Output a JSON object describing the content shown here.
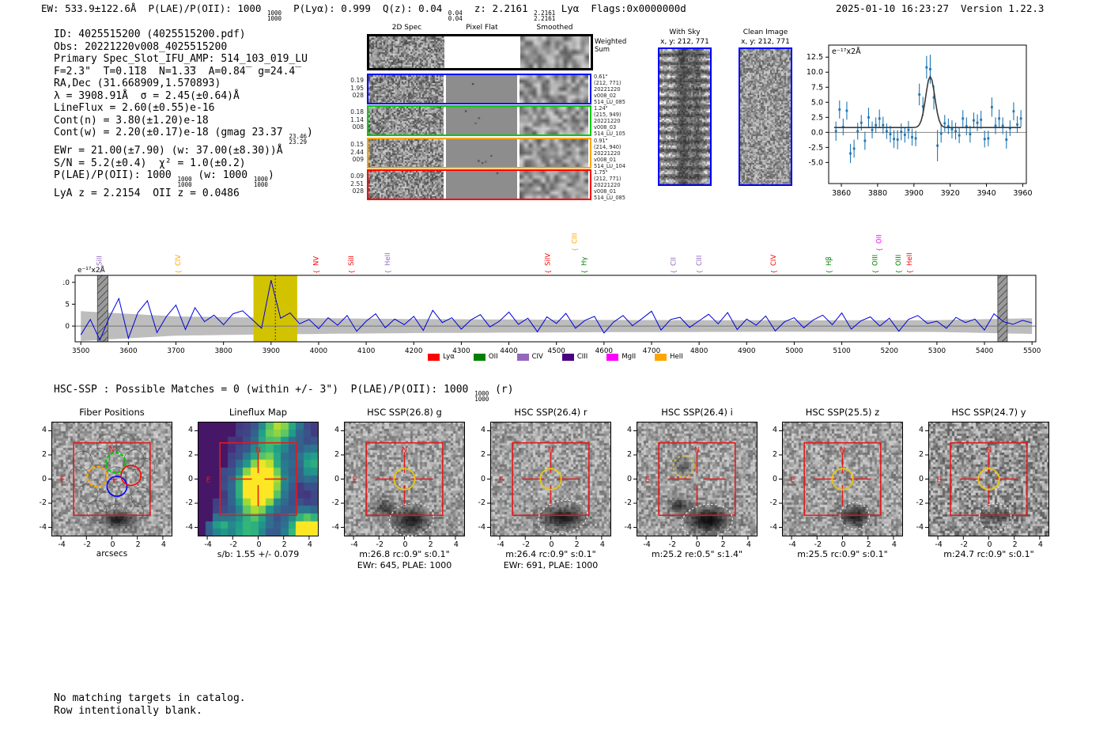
{
  "header": {
    "tokens": [
      "EW: 533.9±122.6Å  P(LAE)/P(OII): 1000 ",
      {
        "hi": "1000",
        "lo": "1000"
      },
      "  P(Lyα): 0.999  Q(z): 0.04 ",
      {
        "hi": "0.04",
        "lo": "0.04"
      },
      "  z: 2.2161 ",
      {
        "hi": "2.2161",
        "lo": "2.2161"
      },
      " Lyα  Flags:0x0000000d"
    ],
    "datetime_version": "2025-01-10 16:23:27  Version 1.22.3",
    "datetime": "2025-01-10 16:23:27",
    "version": "Version 1.22.3"
  },
  "info": {
    "lines": [
      [
        "ID: 4025515200 (4025515200.pdf)"
      ],
      [
        "Obs: 20221220v008_4025515200"
      ],
      [
        "Primary Spec_Slot_IFU_AMP: 514_103_019_LU"
      ],
      [
        "F=2.3\"  T=0.1̅18  N=1.3̅3  A=0.84̅  g=24.4̅"
      ],
      [
        "RA,Dec (31.668909,1.570893)"
      ],
      [
        "λ = 3908.91Å  σ = 2.45(±0.64)Å"
      ],
      [
        "LineFlux = 2.60(±0.55)e-16"
      ],
      [
        "Cont(n) = 3.80(±1.20)e-18"
      ],
      [
        "Cont(w) = 2.20(±0.17)e-18 (gmag 23.37 ",
        {
          "hi": "23.46",
          "lo": "23.29"
        },
        ")"
      ],
      [
        "EWr = 21.00(±7.90) (w: 37.00(±8.30))Å"
      ],
      [
        "S/N = 5.2(±0.4)  χ² = 1.0(±0.2)"
      ],
      [
        "P(LAE)/P(OII): 1000 ",
        {
          "hi": "1000",
          "lo": "1000"
        },
        " (w: 1000 ",
        {
          "hi": "1000",
          "lo": "1000"
        },
        ")"
      ],
      [
        "LyA z = 2.2154  OII z = 0.0486"
      ]
    ]
  },
  "spec2d": {
    "col_titles": [
      "2D Spec",
      "Pixel Flat",
      "Smoothed"
    ],
    "weighted_label": [
      "Weighted",
      "Sum"
    ],
    "rows": [
      {
        "border": "#000000",
        "left": [],
        "right": []
      },
      {
        "border": "#0000ff",
        "left": [
          "0.19",
          "1.95",
          "028"
        ],
        "right": [
          "0.61\"",
          "(212, 771)",
          "20221220",
          "v008_02",
          "514_LU_085"
        ]
      },
      {
        "border": "#00cc00",
        "left": [
          "0.18",
          "1.14",
          "008"
        ],
        "right": [
          "1.24\"",
          "(215, 949)",
          "20221220",
          "v008_03",
          "514_LU_105"
        ]
      },
      {
        "border": "#ffa500",
        "left": [
          "0.15",
          "2.44",
          "009"
        ],
        "right": [
          "0.91\"",
          "(214, 940)",
          "20221220",
          "v008_01",
          "514_LU_104"
        ]
      },
      {
        "border": "#ff0000",
        "left": [
          "0.09",
          "2.51",
          "028"
        ],
        "right": [
          "1.75\"",
          "(212, 771)",
          "20221220",
          "v008_01",
          "514_LU_085"
        ]
      }
    ]
  },
  "sky_panels": [
    {
      "title": "With Sky",
      "subtitle": "x, y: 212, 771",
      "border": "#0000ff"
    },
    {
      "title": "Clean Image",
      "subtitle": "x, y: 212, 771",
      "border": "#0000ff"
    }
  ],
  "chart_data": [
    {
      "type": "scatter",
      "title": "emission line fit",
      "unit_label": "e⁻¹⁷x2Å",
      "x_start": 3857,
      "x_step": 2,
      "values": [
        0.2,
        3.8,
        0.9,
        3.6,
        -3.5,
        -2.7,
        0.2,
        1.6,
        -1.4,
        2.5,
        0.4,
        1.2,
        2.3,
        1.2,
        0.2,
        -0.3,
        -1.1,
        -1.2,
        0.1,
        -0.4,
        0.4,
        -0.8,
        -1.0,
        6.3,
        4.3,
        10.8,
        10.5,
        5.8,
        -2.2,
        -0.2,
        1.5,
        1.0,
        0.5,
        0.2,
        -0.5,
        2.3,
        1.0,
        -0.3,
        2.0,
        1.6,
        2.1,
        -1.1,
        -1.0,
        4.2,
        1.1,
        2.3,
        1.1,
        -1.2,
        0.7,
        3.5,
        1.3,
        2.3
      ],
      "errors": [
        1.6,
        1.5,
        1.4,
        1.5,
        1.6,
        1.5,
        1.4,
        1.3,
        1.5,
        1.6,
        1.4,
        1.3,
        1.5,
        1.4,
        1.3,
        1.4,
        1.5,
        1.6,
        1.4,
        1.3,
        1.5,
        1.4,
        1.3,
        1.8,
        1.6,
        1.9,
        2.4,
        2.0,
        2.6,
        1.5,
        1.4,
        1.3,
        1.5,
        1.4,
        1.3,
        1.4,
        1.5,
        1.4,
        1.3,
        1.4,
        1.5,
        1.4,
        1.3,
        1.6,
        1.4,
        1.5,
        1.4,
        1.5,
        1.3,
        1.5,
        1.4,
        1.4
      ],
      "fit": {
        "baseline": 0.8,
        "amplitude": 8.5,
        "center": 3909,
        "sigma": 2.5
      },
      "xticks": [
        3860,
        3880,
        3900,
        3920,
        3940,
        3960
      ],
      "yticks": [
        -5.0,
        -2.5,
        0.0,
        2.5,
        5.0,
        7.5,
        10.0,
        12.5
      ],
      "xlim": [
        3853,
        3962
      ],
      "ylim": [
        -8.5,
        14.5
      ],
      "point_color": "#1f77b4",
      "fit_color": "#3a3a3a"
    },
    {
      "type": "line",
      "title": "full spectrum",
      "unit_label": "e⁻¹⁷x2Å",
      "x_start": 3500,
      "x_step": 20,
      "values": [
        -2.0,
        1.5,
        -3.2,
        2.0,
        6.3,
        -2.8,
        3.1,
        5.8,
        -1.5,
        2.2,
        4.8,
        -0.8,
        4.2,
        1.0,
        2.5,
        0.3,
        2.8,
        3.5,
        1.5,
        -0.5,
        10.5,
        1.8,
        3.0,
        0.5,
        1.5,
        -0.6,
        1.9,
        0.2,
        2.4,
        -1.2,
        1.1,
        2.8,
        -0.4,
        1.6,
        0.3,
        2.2,
        -1.0,
        3.6,
        0.8,
        1.9,
        -0.7,
        1.4,
        2.6,
        -0.2,
        1.1,
        3.2,
        0.4,
        1.8,
        -1.3,
        2.1,
        0.6,
        2.9,
        -0.5,
        1.3,
        2.2,
        -1.6,
        0.9,
        2.4,
        0.1,
        1.7,
        3.4,
        -0.9,
        1.5,
        2.0,
        -0.3,
        1.2,
        2.7,
        0.5,
        3.1,
        -0.8,
        1.6,
        0.2,
        2.3,
        -1.1,
        1.0,
        1.9,
        -0.4,
        1.4,
        2.5,
        0.3,
        3.0,
        -0.7,
        1.2,
        2.1,
        0.0,
        1.8,
        -1.2,
        1.5,
        2.4,
        0.6,
        1.1,
        -0.5,
        2.0,
        0.8,
        1.6,
        -0.9,
        2.8,
        1.0,
        0.4,
        1.3,
        0.7
      ],
      "envelope_x": [
        3500,
        3700,
        3900,
        4200,
        4600,
        5000,
        5300,
        5500
      ],
      "envelope": [
        3.4,
        2.2,
        1.9,
        1.6,
        1.4,
        1.3,
        1.35,
        1.8
      ],
      "xticks": [
        3500,
        3600,
        3700,
        3800,
        3900,
        4000,
        4100,
        4200,
        4300,
        4400,
        4500,
        4600,
        4700,
        4800,
        4900,
        5000,
        5100,
        5200,
        5300,
        5400,
        5500
      ],
      "yticks": [
        0,
        5,
        10
      ],
      "xlim": [
        3488,
        5508
      ],
      "ylim": [
        -3.6,
        11.6
      ],
      "highlight_band": [
        3863,
        3955
      ],
      "hatch_bands": [
        [
          3535,
          3557
        ],
        [
          5428,
          5448
        ]
      ],
      "marker_wavelength": 3909,
      "line_color": "#0000dd",
      "line_labels": [
        {
          "label": "SiII",
          "wavelength": 3544,
          "color": "#9467bd",
          "high": false
        },
        {
          "label": "CIV",
          "wavelength": 3709,
          "color": "#ffa500",
          "high": false
        },
        {
          "label": "NV",
          "wavelength": 3999,
          "color": "#ff0000",
          "high": false
        },
        {
          "label": "SiII",
          "wavelength": 4073,
          "color": "#ff0000",
          "high": false
        },
        {
          "label": "HeII",
          "wavelength": 4150,
          "color": "#9467bd",
          "high": false
        },
        {
          "label": "SiIV",
          "wavelength": 4486,
          "color": "#ff0000",
          "high": false
        },
        {
          "label": "CIII",
          "wavelength": 4543,
          "color": "#ffa500",
          "high": true
        },
        {
          "label": "Hγ",
          "wavelength": 4563,
          "color": "#008000",
          "high": false
        },
        {
          "label": "CII",
          "wavelength": 4751,
          "color": "#9467bd",
          "high": false
        },
        {
          "label": "CIII",
          "wavelength": 4805,
          "color": "#9467bd",
          "high": false
        },
        {
          "label": "CIV",
          "wavelength": 4961,
          "color": "#ff0000",
          "high": false
        },
        {
          "label": "Hβ",
          "wavelength": 5077,
          "color": "#008000",
          "high": false
        },
        {
          "label": "OIII",
          "wavelength": 5175,
          "color": "#008000",
          "high": false
        },
        {
          "label": "OII",
          "wavelength": 5183,
          "color": "#ff00ff",
          "high": true
        },
        {
          "label": "OIII",
          "wavelength": 5224,
          "color": "#008000",
          "high": false
        },
        {
          "label": "HeII",
          "wavelength": 5247,
          "color": "#ff0000",
          "high": false
        }
      ],
      "legend": [
        {
          "label": "Lyα",
          "color": "#ff0000"
        },
        {
          "label": "OII",
          "color": "#008000"
        },
        {
          "label": "CIV",
          "color": "#9467bd"
        },
        {
          "label": "CIII",
          "color": "#4b0082"
        },
        {
          "label": "MgII",
          "color": "#ff00ff"
        },
        {
          "label": "HeII",
          "color": "#ffa500"
        }
      ]
    }
  ],
  "hsc_line": {
    "tokens": [
      "HSC-SSP : Possible Matches = 0 (within +/- 3\")  P(LAE)/P(OII): 1000 ",
      {
        "hi": "1000",
        "lo": "1000"
      },
      " (r)"
    ]
  },
  "panels": {
    "yticks": [
      4,
      2,
      0,
      -2,
      -4
    ],
    "xticks": [
      -4,
      -2,
      0,
      2,
      4
    ],
    "compass": {
      "n": "N",
      "e": "E"
    },
    "items": [
      {
        "title": "Fiber Positions",
        "xlabel": "arcsecs",
        "captions": [],
        "kind": "fiber"
      },
      {
        "title": "Lineflux Map",
        "captions": [
          "s/b: 1.55 +/- 0.079"
        ],
        "kind": "map"
      },
      {
        "title": "HSC SSP(26.8) g",
        "captions": [
          "m:26.8 rc:0.9\"  s:0.1\"",
          "EWr: 645, PLAE: 1000"
        ],
        "kind": "cutout",
        "aperture": "solid"
      },
      {
        "title": "HSC SSP(26.4) r",
        "captions": [
          "m:26.4 rc:0.9\"  s:0.1\"",
          "EWr: 691, PLAE: 1000"
        ],
        "kind": "cutout",
        "aperture": "solid"
      },
      {
        "title": "HSC SSP(26.4) i",
        "captions": [
          "m:25.2  re:0.5\"  s:1.4\""
        ],
        "kind": "cutout",
        "aperture": "dashed-offset"
      },
      {
        "title": "HSC SSP(25.5) z",
        "captions": [
          "m:25.5 rc:0.9\"  s:0.1\""
        ],
        "kind": "cutout",
        "aperture": "solid"
      },
      {
        "title": "HSC SSP(24.7) y",
        "captions": [
          "m:24.7 rc:0.9\"  s:0.1\""
        ],
        "kind": "cutout",
        "aperture": "solid"
      }
    ]
  },
  "footer": {
    "lines": [
      "No matching targets in catalog.",
      "Row intentionally blank."
    ]
  }
}
